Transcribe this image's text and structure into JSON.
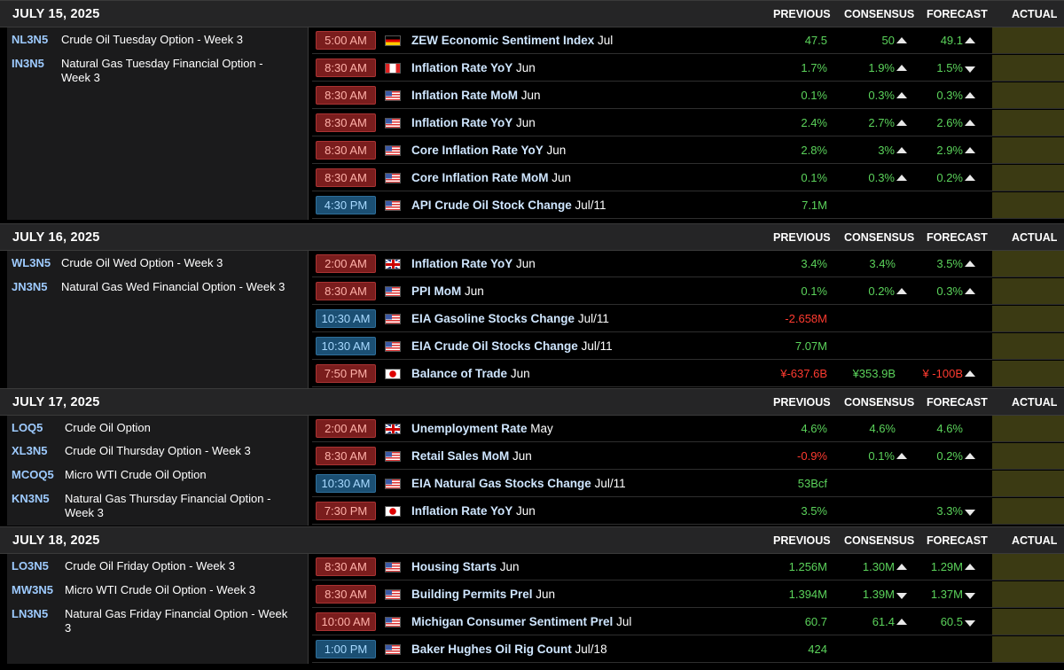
{
  "columns": {
    "previous": "PREVIOUS",
    "consensus": "CONSENSUS",
    "forecast": "FORECAST",
    "actual": "ACTUAL"
  },
  "days": [
    {
      "date": "JULY 15, 2025",
      "contracts": [
        {
          "symbol": "NL3N5",
          "name": "Crude Oil Tuesday Option - Week 3"
        },
        {
          "symbol": "IN3N5",
          "name": "Natural Gas Tuesday Financial Option - Week 3"
        }
      ],
      "events": [
        {
          "time": "5:00 AM",
          "flag": "germany-flag",
          "event": "ZEW Economic Sentiment Index",
          "period": "Jul",
          "previous": "47.5",
          "consensus": "50",
          "cons_arrow": "up",
          "forecast": "49.1",
          "fore_arrow": "up"
        },
        {
          "time": "8:30 AM",
          "flag": "canada-flag",
          "event": "Inflation Rate YoY",
          "period": "Jun",
          "previous": "1.7%",
          "consensus": "1.9%",
          "cons_arrow": "up",
          "forecast": "1.5%",
          "fore_arrow": "down"
        },
        {
          "time": "8:30 AM",
          "flag": "us-flag",
          "event": "Inflation Rate MoM",
          "period": "Jun",
          "previous": "0.1%",
          "consensus": "0.3%",
          "cons_arrow": "up",
          "forecast": "0.3%",
          "fore_arrow": "up"
        },
        {
          "time": "8:30 AM",
          "flag": "us-flag",
          "event": "Inflation Rate YoY",
          "period": "Jun",
          "previous": "2.4%",
          "consensus": "2.7%",
          "cons_arrow": "up",
          "forecast": "2.6%",
          "fore_arrow": "up"
        },
        {
          "time": "8:30 AM",
          "flag": "us-flag",
          "event": "Core Inflation Rate YoY",
          "period": "Jun",
          "previous": "2.8%",
          "consensus": "3%",
          "cons_arrow": "up",
          "forecast": "2.9%",
          "fore_arrow": "up"
        },
        {
          "time": "8:30 AM",
          "flag": "us-flag",
          "event": "Core Inflation Rate MoM",
          "period": "Jun",
          "previous": "0.1%",
          "consensus": "0.3%",
          "cons_arrow": "up",
          "forecast": "0.2%",
          "fore_arrow": "up"
        },
        {
          "time": "4:30 PM",
          "flag": "us-flag",
          "event": "API Crude Oil Stock Change",
          "period": "Jul/11",
          "previous": "7.1M",
          "consensus": "",
          "cons_arrow": "",
          "forecast": "",
          "fore_arrow": ""
        }
      ]
    },
    {
      "date": "JULY 16, 2025",
      "contracts": [
        {
          "symbol": "WL3N5",
          "name": "Crude Oil Wed Option - Week 3"
        },
        {
          "symbol": "JN3N5",
          "name": "Natural Gas Wed Financial Option - Week 3"
        }
      ],
      "events": [
        {
          "time": "2:00 AM",
          "flag": "uk-flag",
          "event": "Inflation Rate YoY",
          "period": "Jun",
          "previous": "3.4%",
          "consensus": "3.4%",
          "cons_arrow": "",
          "forecast": "3.5%",
          "fore_arrow": "up"
        },
        {
          "time": "8:30 AM",
          "flag": "us-flag",
          "event": "PPI MoM",
          "period": "Jun",
          "previous": "0.1%",
          "consensus": "0.2%",
          "cons_arrow": "up",
          "forecast": "0.3%",
          "fore_arrow": "up"
        },
        {
          "time": "10:30 AM",
          "flag": "us-flag",
          "event": "EIA Gasoline Stocks Change",
          "period": "Jul/11",
          "previous": "-2.658M",
          "prev_neg": true,
          "consensus": "",
          "cons_arrow": "",
          "forecast": "",
          "fore_arrow": ""
        },
        {
          "time": "10:30 AM",
          "flag": "us-flag",
          "event": "EIA Crude Oil Stocks Change",
          "period": "Jul/11",
          "previous": "7.07M",
          "consensus": "",
          "cons_arrow": "",
          "forecast": "",
          "fore_arrow": ""
        },
        {
          "time": "7:50 PM",
          "flag": "japan-flag",
          "event": "Balance of Trade",
          "period": "Jun",
          "previous": "¥-637.6B",
          "prev_neg": true,
          "consensus": "¥353.9B",
          "forecast": "¥ -100B",
          "fore_neg": true,
          "cons_arrow": "",
          "fore_arrow": "up"
        }
      ]
    },
    {
      "date": "JULY 17, 2025",
      "contracts": [
        {
          "symbol": "LOQ5",
          "name": "Crude Oil Option"
        },
        {
          "symbol": "XL3N5",
          "name": "Crude Oil Thursday Option - Week 3"
        },
        {
          "symbol": "MCOQ5",
          "name": "Micro WTI Crude Oil Option"
        },
        {
          "symbol": "KN3N5",
          "name": "Natural Gas Thursday Financial Option - Week 3"
        }
      ],
      "events": [
        {
          "time": "2:00 AM",
          "flag": "uk-flag",
          "event": "Unemployment Rate",
          "period": "May",
          "previous": "4.6%",
          "consensus": "4.6%",
          "cons_arrow": "",
          "forecast": "4.6%",
          "fore_arrow": ""
        },
        {
          "time": "8:30 AM",
          "flag": "us-flag",
          "event": "Retail Sales MoM",
          "period": "Jun",
          "previous": "-0.9%",
          "prev_neg": true,
          "consensus": "0.1%",
          "cons_arrow": "up",
          "forecast": "0.2%",
          "fore_arrow": "up"
        },
        {
          "time": "10:30 AM",
          "flag": "us-flag",
          "event": "EIA Natural Gas Stocks Change",
          "period": "Jul/11",
          "previous": "53Bcf",
          "consensus": "",
          "cons_arrow": "",
          "forecast": "",
          "fore_arrow": ""
        },
        {
          "time": "7:30 PM",
          "flag": "japan-flag",
          "event": "Inflation Rate YoY",
          "period": "Jun",
          "previous": "3.5%",
          "consensus": "",
          "cons_arrow": "",
          "forecast": "3.3%",
          "fore_arrow": "down"
        }
      ]
    },
    {
      "date": "JULY 18, 2025",
      "contracts": [
        {
          "symbol": "LO3N5",
          "name": "Crude Oil Friday Option - Week 3"
        },
        {
          "symbol": "MW3N5",
          "name": "Micro WTI Crude Oil Option - Week 3"
        },
        {
          "symbol": "LN3N5",
          "name": "Natural Gas Friday Financial Option - Week 3"
        }
      ],
      "events": [
        {
          "time": "8:30 AM",
          "flag": "us-flag",
          "event": "Housing Starts",
          "period": "Jun",
          "previous": "1.256M",
          "consensus": "1.30M",
          "cons_arrow": "up",
          "forecast": "1.29M",
          "fore_arrow": "up"
        },
        {
          "time": "8:30 AM",
          "flag": "us-flag",
          "event": "Building Permits Prel",
          "period": "Jun",
          "previous": "1.394M",
          "consensus": "1.39M",
          "cons_arrow": "down",
          "forecast": "1.37M",
          "fore_arrow": "down"
        },
        {
          "time": "10:00 AM",
          "flag": "us-flag",
          "event": "Michigan Consumer Sentiment Prel",
          "period": "Jul",
          "previous": "60.7",
          "consensus": "61.4",
          "cons_arrow": "up",
          "forecast": "60.5",
          "fore_arrow": "down"
        },
        {
          "time": "1:00 PM",
          "flag": "us-flag",
          "event": "Baker Hughes Oil Rig Count",
          "period": "Jul/18",
          "previous": "424",
          "consensus": "",
          "cons_arrow": "",
          "forecast": "",
          "fore_arrow": ""
        }
      ]
    }
  ]
}
